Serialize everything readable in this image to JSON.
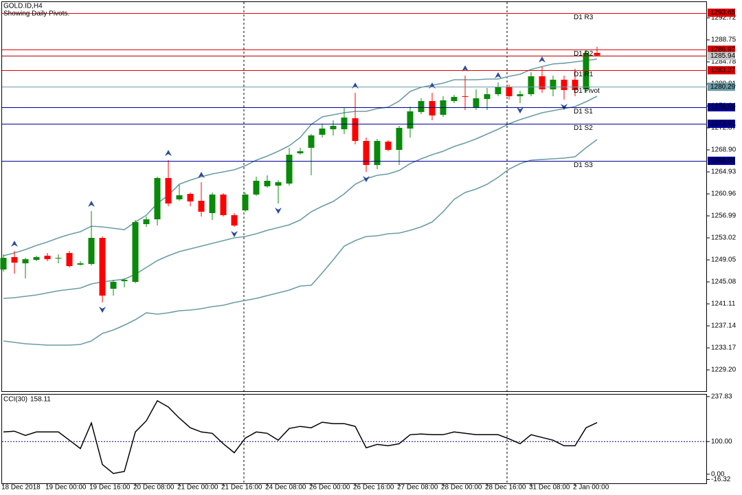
{
  "chart_data": [
    {
      "type": "candlestick",
      "title": "GOLD.ID,H4",
      "subtitle": "Showing Daily Pivots.",
      "categories": [
        "18 Dec 2018",
        null,
        null,
        null,
        "19 Dec 00:00",
        null,
        null,
        null,
        "19 Dec 16:00",
        null,
        null,
        null,
        "20 Dec 08:00",
        null,
        null,
        null,
        "21 Dec 00:00",
        null,
        null,
        null,
        "21 Dec 16:00",
        null,
        null,
        null,
        "24 Dec 08:00",
        null,
        null,
        null,
        "26 Dec 00:00",
        null,
        null,
        null,
        "26 Dec 16:00",
        null,
        null,
        null,
        "27 Dec 08:00",
        null,
        null,
        null,
        "28 Dec 00:00",
        null,
        null,
        null,
        "28 Dec 16:00",
        null,
        null,
        null,
        "31 Dec 08:00",
        null,
        null,
        null,
        "2 Jan 00:00",
        null,
        null
      ],
      "open": [
        1247.31,
        1249.55,
        1248.43,
        1249.05,
        1249.8,
        1249.42,
        1250.29,
        1248.18,
        1248.31,
        1253.02,
        1243.84,
        1245.2,
        1245.08,
        1255.5,
        1256.37,
        1263.82,
        1259.97,
        1260.96,
        1259.72,
        1257.49,
        1260.84,
        1257.12,
        1257.98,
        1260.84,
        1262.33,
        1262.45,
        1262.82,
        1268.28,
        1269.27,
        1271.63,
        1272.62,
        1272.62,
        1274.61,
        1270.51,
        1266.17,
        1270.39,
        1268.9,
        1272.75,
        1275.73,
        1277.71,
        1275.23,
        1277.71,
        1278.58,
        1276.47,
        1278.08,
        1278.95,
        1280.32,
        1278.58,
        1278.95,
        1282.18,
        1279.82,
        1281.56,
        1281.56,
        1279.82,
        1286.4
      ],
      "high": [
        1250.04,
        1250.66,
        1249.42,
        1249.8,
        1250.29,
        1250.04,
        1250.66,
        1248.8,
        1257.86,
        1253.27,
        1245.45,
        1245.7,
        1256.25,
        1256.87,
        1264.06,
        1267.04,
        1262.57,
        1261.21,
        1263.07,
        1261.21,
        1261.09,
        1257.49,
        1261.21,
        1264.06,
        1264.31,
        1263.44,
        1269.27,
        1269.27,
        1271.76,
        1273.62,
        1274.24,
        1276.47,
        1279.2,
        1271.14,
        1270.89,
        1270.64,
        1273.24,
        1276.72,
        1278.21,
        1279.2,
        1278.58,
        1278.83,
        1282.3,
        1279.82,
        1280.07,
        1281.06,
        1280.69,
        1279.57,
        1282.92,
        1283.91,
        1282.3,
        1282.3,
        1283.54,
        1286.89,
        1287.51
      ],
      "low": [
        1246.94,
        1246.57,
        1245.7,
        1248.8,
        1248.8,
        1248.43,
        1247.69,
        1248.06,
        1248.06,
        1241.36,
        1242.6,
        1244.09,
        1244.83,
        1255.01,
        1255.25,
        1258.73,
        1259.72,
        1258.73,
        1256.87,
        1256.25,
        1256.87,
        1255.01,
        1257.74,
        1260.59,
        1262.08,
        1259.22,
        1262.45,
        1268.03,
        1264.31,
        1271.14,
        1271.51,
        1271.76,
        1269.89,
        1264.93,
        1265.43,
        1268.65,
        1266.17,
        1271.14,
        1275.35,
        1274.24,
        1274.86,
        1277.34,
        1276.1,
        1276.1,
        1276.1,
        1278.58,
        1277.96,
        1277.34,
        1278.58,
        1279.2,
        1278.58,
        1277.96,
        1278.58,
        1279.2,
        1285.9
      ],
      "close": [
        1249.42,
        1248.55,
        1249.18,
        1249.55,
        1249.18,
        1249.42,
        1247.93,
        1248.43,
        1253.02,
        1242.6,
        1245.08,
        1245.45,
        1255.87,
        1256.37,
        1263.82,
        1259.22,
        1260.71,
        1259.6,
        1257.74,
        1260.84,
        1257.12,
        1255.25,
        1260.84,
        1263.32,
        1263.32,
        1263.07,
        1268.03,
        1268.65,
        1271.51,
        1272.75,
        1273.24,
        1274.73,
        1270.51,
        1266.17,
        1270.51,
        1268.9,
        1272.87,
        1275.85,
        1277.71,
        1275.11,
        1277.84,
        1278.46,
        1278.46,
        1278.21,
        1278.95,
        1280.19,
        1278.58,
        1278.95,
        1282.18,
        1279.82,
        1281.56,
        1279.7,
        1279.7,
        1286.4,
        1285.94
      ],
      "up_color": "#0a8a0a",
      "down_color": "#ff0000",
      "bollinger": {
        "color": "#6a9ba6",
        "upper": [
          1249.8,
          1250.29,
          1250.91,
          1251.66,
          1252.28,
          1253.02,
          1253.64,
          1254.14,
          1255.13,
          1255.01,
          1254.76,
          1254.51,
          1255.88,
          1257.12,
          1259.23,
          1260.71,
          1262.7,
          1263.44,
          1264.06,
          1264.56,
          1264.93,
          1265.3,
          1266.05,
          1267.04,
          1267.79,
          1268.65,
          1269.65,
          1271.14,
          1273.49,
          1274.86,
          1275.23,
          1275.6,
          1275.85,
          1275.85,
          1276.35,
          1276.6,
          1277.71,
          1279.45,
          1280.19,
          1280.57,
          1280.94,
          1281.56,
          1281.56,
          1281.56,
          1281.68,
          1281.68,
          1282.18,
          1282.55,
          1283.42,
          1283.92,
          1284.41,
          1284.54,
          1284.78,
          1285.03,
          1285.28
        ],
        "middle": [
          1242.1,
          1242.23,
          1242.48,
          1242.72,
          1243.1,
          1243.47,
          1243.72,
          1243.96,
          1244.71,
          1245.08,
          1245.33,
          1245.58,
          1246.45,
          1247.69,
          1248.93,
          1249.8,
          1250.54,
          1251.04,
          1251.53,
          1252.03,
          1252.53,
          1253.02,
          1253.27,
          1253.77,
          1254.39,
          1254.88,
          1255.38,
          1256.25,
          1257.74,
          1258.73,
          1259.6,
          1260.96,
          1262.7,
          1263.69,
          1264.31,
          1264.56,
          1265.18,
          1266.42,
          1267.29,
          1268.03,
          1268.65,
          1269.52,
          1270.14,
          1270.89,
          1271.76,
          1272.62,
          1273.62,
          1274.36,
          1274.98,
          1275.6,
          1275.97,
          1276.35,
          1276.72,
          1277.59,
          1278.58
        ],
        "lower": [
          1234.41,
          1234.16,
          1233.91,
          1233.79,
          1233.67,
          1233.67,
          1233.67,
          1233.79,
          1234.41,
          1235.78,
          1236.4,
          1237.26,
          1238.26,
          1239.5,
          1239.25,
          1239.5,
          1239.87,
          1239.99,
          1240.24,
          1240.61,
          1240.86,
          1241.36,
          1241.73,
          1242.1,
          1242.6,
          1243.1,
          1243.59,
          1244.34,
          1244.46,
          1246.69,
          1249.05,
          1251.53,
          1252.53,
          1253.27,
          1253.39,
          1253.77,
          1253.89,
          1254.39,
          1255.01,
          1255.88,
          1257.74,
          1259.97,
          1261.21,
          1261.83,
          1262.7,
          1263.94,
          1265.43,
          1266.42,
          1267.04,
          1267.17,
          1267.29,
          1267.41,
          1267.66,
          1269.28,
          1270.76
        ]
      },
      "fractal_color": "#2a4a9c",
      "fractals_up": [
        null,
        1250.66,
        null,
        null,
        null,
        null,
        null,
        null,
        1257.86,
        null,
        null,
        null,
        null,
        null,
        null,
        1267.04,
        null,
        null,
        1263.07,
        null,
        null,
        null,
        null,
        null,
        null,
        null,
        null,
        null,
        null,
        null,
        null,
        null,
        1279.2,
        null,
        null,
        null,
        null,
        null,
        null,
        1279.2,
        null,
        null,
        1282.3,
        null,
        null,
        1281.06,
        null,
        null,
        null,
        1283.91,
        null,
        null,
        null,
        null,
        null
      ],
      "fractals_down": [
        null,
        null,
        null,
        null,
        null,
        null,
        null,
        null,
        null,
        1241.36,
        null,
        null,
        null,
        null,
        null,
        null,
        null,
        null,
        null,
        null,
        null,
        1255.01,
        null,
        null,
        null,
        1259.22,
        null,
        null,
        null,
        null,
        null,
        null,
        null,
        1264.93,
        null,
        null,
        null,
        null,
        null,
        null,
        null,
        null,
        null,
        null,
        null,
        null,
        null,
        1277.34,
        null,
        null,
        null,
        1277.96,
        null,
        null,
        null
      ],
      "pivots": [
        {
          "name": "D1 R3",
          "value": 1293.65,
          "color": "#e00000"
        },
        {
          "name": "D1 R2",
          "value": 1286.97,
          "color": "#e00000"
        },
        {
          "name": "D1 R1",
          "value": 1283.27,
          "color": "#e00000"
        },
        {
          "name": "D1 Pivot",
          "value": 1280.29,
          "color": "#6a9ba6"
        },
        {
          "name": "D1 S1",
          "value": 1276.59,
          "color": "#000090"
        },
        {
          "name": "D1 S2",
          "value": 1273.61,
          "color": "#000090"
        },
        {
          "name": "D1 S3",
          "value": 1266.93,
          "color": "#000090"
        }
      ],
      "last_price_color": "#b00000",
      "ylim": [
        1225.23,
        1295.45
      ],
      "yticks": [
        1292.72,
        1288.75,
        1284.78,
        1280.81,
        1276.84,
        1272.87,
        {
          "value": 1268.9,
          "label": "1268.90"
        },
        1264.93,
        1260.96,
        1256.99,
        1253.02,
        1249.05,
        1245.08,
        1241.11,
        1237.14,
        1233.17,
        {
          "value": 1229.2,
          "label": "1229.20"
        }
      ]
    },
    {
      "type": "line",
      "title": "CCI(30)",
      "values": [
        129.5,
        131.7,
        118.9,
        129.5,
        129.5,
        129.5,
        104.1,
        78.6,
        157.1,
        29.7,
        2.1,
        8.5,
        129.5,
        163.5,
        225.1,
        206.0,
        172.0,
        142.3,
        129.5,
        125.3,
        93.4,
        65.8,
        110.4,
        129.5,
        125.3,
        104.1,
        140.2,
        146.5,
        142.3,
        159.3,
        155.0,
        155.0,
        146.5,
        80.7,
        91.3,
        87.1,
        93.4,
        121.0,
        123.2,
        121.0,
        121.0,
        129.5,
        125.3,
        121.0,
        121.0,
        121.0,
        108.3,
        93.4,
        121.0,
        112.5,
        104.1,
        87.1,
        87.1,
        142.3,
        158.11
      ],
      "color": "#000000",
      "level_color": "#000090",
      "levels": [
        100
      ],
      "ylim": [
        -28,
        246
      ],
      "yticks": [
        237.83,
        {
          "value": 100,
          "label": "100.00"
        },
        {
          "value": 0,
          "label": "0.00"
        },
        -16.32
      ]
    }
  ]
}
